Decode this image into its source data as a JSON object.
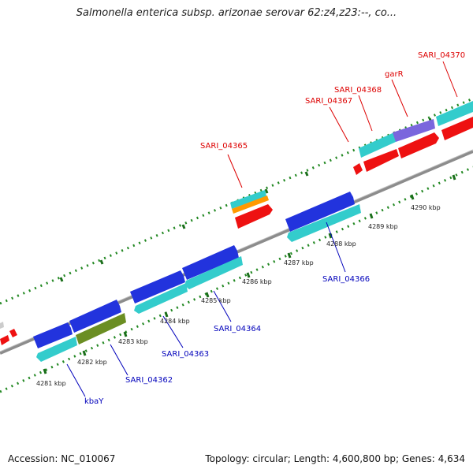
{
  "title": "Salmonella enterica subsp. arizonae serovar 62:z4,z23:--, co...",
  "footer": {
    "accession": "Accession: NC_010067",
    "summary": "Topology: circular; Length: 4,600,800 bp; Genes: 4,634"
  },
  "colors": {
    "backbone": "#8c8c8c",
    "tick": "#228822",
    "cds_forward_blue": "#2233dd",
    "cds_reverse_cyan": "#33cccc",
    "cds_red": "#ee1111",
    "olive": "#6b8e23",
    "orange": "#ff9900",
    "purple": "#7a66dd",
    "label_red": "#dd0000",
    "label_blue": "#0000bb"
  },
  "kbp_labels": [
    "4281 kbp",
    "4282 kbp",
    "4283 kbp",
    "4284 kbp",
    "4285 kbp",
    "4286 kbp",
    "4287 kbp",
    "4288 kbp",
    "4289 kbp",
    "4290 kbp"
  ],
  "gene_labels": {
    "red": [
      "SARI_04365",
      "SARI_04367",
      "SARI_04368",
      "garR",
      "SARI_04370"
    ],
    "blue": [
      "kbaY",
      "SARI_04362",
      "SARI_04363",
      "SARI_04364",
      "SARI_04366"
    ]
  }
}
